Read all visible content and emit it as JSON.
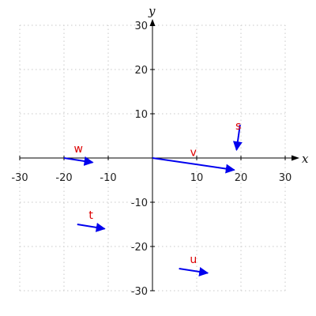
{
  "chart_data": {
    "type": "scatter",
    "xlabel": "x",
    "ylabel": "y",
    "xlim": [
      -30,
      30
    ],
    "ylim": [
      -30,
      30
    ],
    "xticks": [
      -30,
      -20,
      -10,
      10,
      20,
      30
    ],
    "yticks": [
      -30,
      -20,
      -10,
      10,
      20,
      30
    ],
    "grid": true,
    "vectors": [
      {
        "name": "w",
        "start": [
          -20,
          0
        ],
        "end": [
          -13.5,
          -1
        ]
      },
      {
        "name": "v",
        "start": [
          0,
          0
        ],
        "end": [
          18.5,
          -2.7
        ]
      },
      {
        "name": "s",
        "start": [
          19.8,
          7.5
        ],
        "end": [
          19,
          1.8
        ]
      },
      {
        "name": "t",
        "start": [
          -17,
          -15
        ],
        "end": [
          -10.8,
          -16
        ]
      },
      {
        "name": "u",
        "start": [
          6,
          -25
        ],
        "end": [
          12.5,
          -26
        ]
      }
    ]
  },
  "colors": {
    "vector": "#0000ee",
    "label": "#dd0000",
    "axis": "#000000",
    "grid": "#c8c8c8"
  }
}
